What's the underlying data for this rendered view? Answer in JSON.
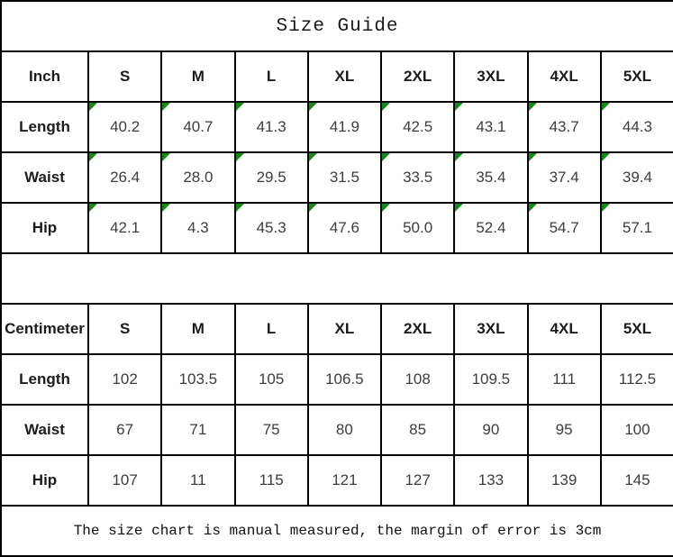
{
  "title": "Size Guide",
  "footer_note": "The size chart is manual measured, the margin of error is 3cm",
  "colors": {
    "border": "#000000",
    "indicator_green": "#168a16",
    "value_text": "#3d3d3d"
  },
  "layout_counts": {
    "size_columns": 8,
    "rows_per_table": 3
  },
  "tables": [
    {
      "id": "inch",
      "unit_label": "Inch",
      "sizes": [
        "S",
        "M",
        "L",
        "XL",
        "2XL",
        "3XL",
        "4XL",
        "5XL"
      ],
      "rows": [
        {
          "label": "Length",
          "indicators": true,
          "values": [
            "40.2",
            "40.7",
            "41.3",
            "41.9",
            "42.5",
            "43.1",
            "43.7",
            "44.3"
          ]
        },
        {
          "label": "Waist",
          "indicators": true,
          "values": [
            "26.4",
            "28.0",
            "29.5",
            "31.5",
            "33.5",
            "35.4",
            "37.4",
            "39.4"
          ]
        },
        {
          "label": "Hip",
          "indicators": true,
          "values": [
            "42.1",
            "4.3",
            "45.3",
            "47.6",
            "50.0",
            "52.4",
            "54.7",
            "57.1"
          ]
        }
      ]
    },
    {
      "id": "centimeter",
      "unit_label": "Centimeter",
      "sizes": [
        "S",
        "M",
        "L",
        "XL",
        "2XL",
        "3XL",
        "4XL",
        "5XL"
      ],
      "rows": [
        {
          "label": "Length",
          "indicators": false,
          "values": [
            "102",
            "103.5",
            "105",
            "106.5",
            "108",
            "109.5",
            "111",
            "112.5"
          ]
        },
        {
          "label": "Waist",
          "indicators": false,
          "values": [
            "67",
            "71",
            "75",
            "80",
            "85",
            "90",
            "95",
            "100"
          ]
        },
        {
          "label": "Hip",
          "indicators": false,
          "values": [
            "107",
            "11",
            "115",
            "121",
            "127",
            "133",
            "139",
            "145"
          ]
        }
      ]
    }
  ]
}
